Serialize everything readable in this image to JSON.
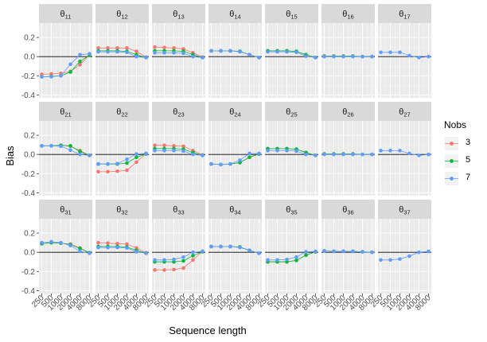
{
  "chart_data": {
    "type": "line",
    "facet_layout": "3x7 grid",
    "xlabel": "Sequence length",
    "ylabel": "Bias",
    "x_tick_labels": [
      "250",
      "500",
      "1000",
      "2000",
      "4000",
      "8000"
    ],
    "y_ticks": [
      -0.4,
      -0.2,
      0.0,
      0.2
    ],
    "y_tick_labels": [
      "-0.4",
      "-0.2",
      "0.0",
      "0.2"
    ],
    "ylim": [
      -0.43,
      0.35
    ],
    "reference_line_y": 0,
    "grid": true,
    "legend": {
      "title": "Nobs",
      "placement": "right",
      "entries": [
        {
          "label": "3",
          "color": "#F8766D"
        },
        {
          "label": "5",
          "color": "#00BA38"
        },
        {
          "label": "7",
          "color": "#619CFF"
        }
      ]
    },
    "panels": [
      {
        "base": "θ",
        "sub": "11",
        "series": {
          "3": [
            -0.185,
            -0.18,
            -0.175,
            -0.155,
            -0.085,
            0.02
          ],
          "5": [
            -0.21,
            -0.205,
            -0.2,
            -0.16,
            -0.05,
            0.015
          ],
          "7": [
            -0.21,
            -0.21,
            -0.2,
            -0.08,
            0.02,
            0.03
          ]
        }
      },
      {
        "base": "θ",
        "sub": "12",
        "series": {
          "3": [
            0.09,
            0.09,
            0.09,
            0.09,
            0.055,
            -0.005
          ],
          "5": [
            0.06,
            0.06,
            0.06,
            0.055,
            0.02,
            -0.01
          ],
          "7": [
            0.05,
            0.05,
            0.05,
            0.045,
            0.0,
            -0.01
          ]
        }
      },
      {
        "base": "θ",
        "sub": "13",
        "series": {
          "3": [
            0.1,
            0.095,
            0.09,
            0.08,
            0.04,
            -0.005
          ],
          "5": [
            0.06,
            0.06,
            0.06,
            0.055,
            0.02,
            -0.01
          ],
          "7": [
            0.04,
            0.04,
            0.04,
            0.035,
            0.0,
            -0.01
          ]
        }
      },
      {
        "base": "θ",
        "sub": "14",
        "series": {
          "3": [
            0.06,
            0.06,
            0.06,
            0.055,
            0.02,
            -0.01
          ],
          "5": [
            0.06,
            0.06,
            0.06,
            0.055,
            0.02,
            -0.01
          ],
          "7": [
            0.06,
            0.06,
            0.06,
            0.05,
            0.02,
            -0.01
          ]
        }
      },
      {
        "base": "θ",
        "sub": "15",
        "series": {
          "3": [
            0.06,
            0.06,
            0.06,
            0.055,
            0.02,
            -0.01
          ],
          "5": [
            0.06,
            0.06,
            0.06,
            0.055,
            0.02,
            -0.01
          ],
          "7": [
            0.05,
            0.05,
            0.05,
            0.045,
            0.005,
            -0.01
          ]
        }
      },
      {
        "base": "θ",
        "sub": "16",
        "series": {
          "3": [
            0.005,
            0.005,
            0.005,
            0.005,
            0.0,
            0.0
          ],
          "5": [
            0.005,
            0.005,
            0.005,
            0.005,
            0.0,
            0.0
          ],
          "7": [
            0.0,
            0.0,
            0.0,
            0.0,
            0.0,
            0.0
          ]
        }
      },
      {
        "base": "θ",
        "sub": "17",
        "series": {
          "3": null,
          "5": null,
          "7": [
            0.045,
            0.045,
            0.045,
            0.01,
            -0.01,
            0.0
          ]
        }
      },
      {
        "base": "θ",
        "sub": "21",
        "series": {
          "3": [
            0.09,
            0.09,
            0.095,
            0.085,
            0.04,
            -0.01
          ],
          "5": [
            0.09,
            0.09,
            0.095,
            0.09,
            0.03,
            -0.01
          ],
          "7": [
            0.09,
            0.09,
            0.085,
            0.045,
            0.0,
            -0.01
          ]
        }
      },
      {
        "base": "θ",
        "sub": "22",
        "series": {
          "3": [
            -0.18,
            -0.18,
            -0.175,
            -0.165,
            -0.08,
            0.01
          ],
          "5": [
            -0.1,
            -0.1,
            -0.1,
            -0.09,
            -0.03,
            0.005
          ],
          "7": [
            -0.1,
            -0.1,
            -0.095,
            -0.05,
            0.005,
            0.01
          ]
        }
      },
      {
        "base": "θ",
        "sub": "23",
        "series": {
          "3": [
            0.095,
            0.095,
            0.09,
            0.085,
            0.04,
            -0.005
          ],
          "5": [
            0.06,
            0.06,
            0.06,
            0.055,
            0.02,
            -0.01
          ],
          "7": [
            0.04,
            0.04,
            0.04,
            0.035,
            0.0,
            -0.01
          ]
        }
      },
      {
        "base": "θ",
        "sub": "24",
        "series": {
          "3": [
            -0.1,
            -0.105,
            -0.1,
            -0.085,
            -0.03,
            0.005
          ],
          "5": [
            -0.1,
            -0.105,
            -0.1,
            -0.085,
            -0.03,
            0.005
          ],
          "7": [
            -0.1,
            -0.105,
            -0.1,
            -0.06,
            0.01,
            0.01
          ]
        }
      },
      {
        "base": "θ",
        "sub": "25",
        "series": {
          "3": [
            0.06,
            0.06,
            0.06,
            0.055,
            0.02,
            -0.01
          ],
          "5": [
            0.06,
            0.06,
            0.06,
            0.055,
            0.02,
            -0.01
          ],
          "7": [
            0.04,
            0.04,
            0.04,
            0.035,
            0.0,
            -0.01
          ]
        }
      },
      {
        "base": "θ",
        "sub": "26",
        "series": {
          "3": [
            0.005,
            0.005,
            0.005,
            0.005,
            0.0,
            0.0
          ],
          "5": [
            0.005,
            0.005,
            0.005,
            0.005,
            0.0,
            0.0
          ],
          "7": [
            0.0,
            0.0,
            0.0,
            0.0,
            0.0,
            0.0
          ]
        }
      },
      {
        "base": "θ",
        "sub": "27",
        "series": {
          "3": null,
          "5": null,
          "7": [
            0.04,
            0.04,
            0.04,
            0.01,
            -0.01,
            0.0
          ]
        }
      },
      {
        "base": "θ",
        "sub": "31",
        "series": {
          "3": [
            0.09,
            0.1,
            0.095,
            0.085,
            0.045,
            -0.005
          ],
          "5": [
            0.09,
            0.1,
            0.095,
            0.08,
            0.04,
            -0.005
          ],
          "7": [
            0.1,
            0.11,
            0.1,
            0.07,
            0.01,
            -0.01
          ]
        }
      },
      {
        "base": "θ",
        "sub": "32",
        "series": {
          "3": [
            0.1,
            0.095,
            0.09,
            0.085,
            0.045,
            -0.005
          ],
          "5": [
            0.06,
            0.06,
            0.06,
            0.055,
            0.02,
            -0.01
          ],
          "7": [
            0.05,
            0.05,
            0.05,
            0.045,
            0.005,
            -0.01
          ]
        }
      },
      {
        "base": "θ",
        "sub": "33",
        "series": {
          "3": [
            -0.185,
            -0.185,
            -0.18,
            -0.165,
            -0.08,
            0.01
          ],
          "5": [
            -0.1,
            -0.1,
            -0.1,
            -0.09,
            -0.035,
            0.005
          ],
          "7": [
            -0.08,
            -0.08,
            -0.075,
            -0.05,
            0.0,
            0.01
          ]
        }
      },
      {
        "base": "θ",
        "sub": "34",
        "series": {
          "3": [
            0.06,
            0.06,
            0.06,
            0.055,
            0.02,
            -0.01
          ],
          "5": [
            0.06,
            0.06,
            0.06,
            0.055,
            0.02,
            -0.01
          ],
          "7": [
            0.06,
            0.06,
            0.06,
            0.05,
            0.02,
            -0.01
          ]
        }
      },
      {
        "base": "θ",
        "sub": "35",
        "series": {
          "3": [
            -0.1,
            -0.1,
            -0.1,
            -0.085,
            -0.03,
            0.005
          ],
          "5": [
            -0.1,
            -0.1,
            -0.1,
            -0.085,
            -0.03,
            0.005
          ],
          "7": [
            -0.08,
            -0.08,
            -0.075,
            -0.05,
            0.005,
            0.01
          ]
        }
      },
      {
        "base": "θ",
        "sub": "36",
        "series": {
          "3": [
            0.015,
            0.01,
            0.01,
            0.01,
            0.005,
            0.0
          ],
          "5": [
            0.015,
            0.01,
            0.01,
            0.01,
            0.005,
            0.0
          ],
          "7": [
            0.015,
            0.01,
            0.01,
            0.01,
            0.005,
            0.0
          ]
        }
      },
      {
        "base": "θ",
        "sub": "37",
        "series": {
          "3": null,
          "5": null,
          "7": [
            -0.08,
            -0.08,
            -0.07,
            -0.04,
            0.0,
            0.01
          ]
        }
      }
    ]
  }
}
